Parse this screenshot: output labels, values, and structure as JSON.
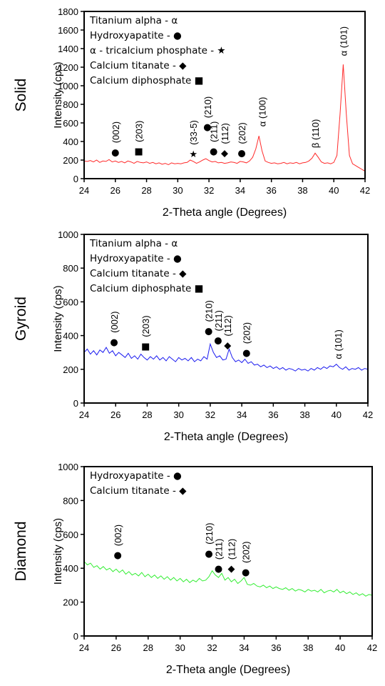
{
  "chart_data": [
    {
      "type": "line",
      "panel_label": "Solid",
      "x_label": "2-Theta angle (Degrees)",
      "y_label": "Intensity (cps)",
      "xlim": [
        24,
        42
      ],
      "xticks": [
        24,
        26,
        28,
        30,
        32,
        34,
        36,
        38,
        40,
        42
      ],
      "ylim": [
        0,
        1800
      ],
      "yticks": [
        0,
        200,
        400,
        600,
        800,
        1000,
        1200,
        1400,
        1600,
        1800
      ],
      "x": [
        24.0,
        24.2,
        24.4,
        24.6,
        24.8,
        25.0,
        25.2,
        25.4,
        25.6,
        25.8,
        26.0,
        26.2,
        26.4,
        26.6,
        26.8,
        27.0,
        27.2,
        27.4,
        27.6,
        27.8,
        28.0,
        28.2,
        28.4,
        28.6,
        28.8,
        29.0,
        29.2,
        29.4,
        29.6,
        29.8,
        30.0,
        30.2,
        30.4,
        30.6,
        30.8,
        31.0,
        31.2,
        31.4,
        31.6,
        31.8,
        32.0,
        32.2,
        32.4,
        32.6,
        32.8,
        33.0,
        33.2,
        33.4,
        33.6,
        33.8,
        34.0,
        34.2,
        34.4,
        34.6,
        34.8,
        35.0,
        35.2,
        35.4,
        35.6,
        35.8,
        36.0,
        36.2,
        36.4,
        36.6,
        36.8,
        37.0,
        37.2,
        37.4,
        37.6,
        37.8,
        38.0,
        38.2,
        38.4,
        38.6,
        38.8,
        39.0,
        39.2,
        39.4,
        39.6,
        39.8,
        40.0,
        40.2,
        40.4,
        40.6,
        40.8,
        41.0,
        41.2,
        41.4,
        41.6,
        41.8,
        42.0
      ],
      "series": [
        {
          "color": "#ff2a2a",
          "values": [
            190,
            185,
            195,
            180,
            200,
            175,
            190,
            185,
            205,
            180,
            190,
            175,
            185,
            170,
            190,
            180,
            165,
            185,
            175,
            170,
            180,
            165,
            175,
            160,
            170,
            155,
            165,
            150,
            170,
            160,
            165,
            160,
            170,
            175,
            200,
            185,
            165,
            180,
            200,
            215,
            195,
            180,
            185,
            170,
            175,
            165,
            170,
            180,
            175,
            165,
            185,
            180,
            170,
            190,
            230,
            320,
            460,
            300,
            190,
            175,
            165,
            170,
            160,
            165,
            175,
            160,
            170,
            165,
            175,
            160,
            170,
            175,
            190,
            220,
            275,
            230,
            180,
            165,
            170,
            160,
            175,
            250,
            700,
            1230,
            700,
            250,
            160,
            140,
            120,
            100,
            80
          ]
        }
      ],
      "legend": [
        "Titanium alpha - α",
        "Hydroxyapatite - ●",
        "α - tricalcium phosphate - ★",
        "Calcium titanate - ◆",
        "Calcium diphosphate ■"
      ],
      "annotations": [
        {
          "label": "(002)",
          "symbol": "●",
          "x": 26,
          "y": 290
        },
        {
          "label": "(203)",
          "symbol": "■",
          "x": 27.5,
          "y": 300
        },
        {
          "label": "(33-5)",
          "symbol": "★",
          "x": 31,
          "y": 270
        },
        {
          "label": "(210)",
          "symbol": "●",
          "x": 31.9,
          "y": 560
        },
        {
          "label": "(211)",
          "symbol": "●",
          "x": 32.3,
          "y": 300
        },
        {
          "label": "(112)",
          "symbol": "◆",
          "x": 33,
          "y": 280
        },
        {
          "label": "(202)",
          "symbol": "●",
          "x": 34.1,
          "y": 280
        },
        {
          "label": "α (100)",
          "x": 35.4,
          "y": 560
        },
        {
          "label": "β (110)",
          "x": 38.8,
          "y": 330
        },
        {
          "label": "α (101)",
          "x": 40.6,
          "y": 1320
        }
      ]
    },
    {
      "type": "line",
      "panel_label": "Gyroid",
      "x_label": "2-Theta angle (Degrees)",
      "y_label": "Intensity (cps)",
      "xlim": [
        24,
        42
      ],
      "xticks": [
        24,
        26,
        28,
        30,
        32,
        34,
        36,
        38,
        40,
        42
      ],
      "ylim": [
        0,
        1000
      ],
      "yticks": [
        0,
        200,
        400,
        600,
        800,
        1000
      ],
      "x": [
        24.0,
        24.2,
        24.4,
        24.6,
        24.8,
        25.0,
        25.2,
        25.4,
        25.6,
        25.8,
        26.0,
        26.2,
        26.4,
        26.6,
        26.8,
        27.0,
        27.2,
        27.4,
        27.6,
        27.8,
        28.0,
        28.2,
        28.4,
        28.6,
        28.8,
        29.0,
        29.2,
        29.4,
        29.6,
        29.8,
        30.0,
        30.2,
        30.4,
        30.6,
        30.8,
        31.0,
        31.2,
        31.4,
        31.6,
        31.8,
        32.0,
        32.2,
        32.4,
        32.6,
        32.8,
        33.0,
        33.2,
        33.4,
        33.6,
        33.8,
        34.0,
        34.2,
        34.4,
        34.6,
        34.8,
        35.0,
        35.2,
        35.4,
        35.6,
        35.8,
        36.0,
        36.2,
        36.4,
        36.6,
        36.8,
        37.0,
        37.2,
        37.4,
        37.6,
        37.8,
        38.0,
        38.2,
        38.4,
        38.6,
        38.8,
        39.0,
        39.2,
        39.4,
        39.6,
        39.8,
        40.0,
        40.2,
        40.4,
        40.6,
        40.8,
        41.0,
        41.2,
        41.4,
        41.6,
        41.8,
        42.0
      ],
      "series": [
        {
          "color": "#1c1cf0",
          "values": [
            300,
            320,
            290,
            310,
            285,
            315,
            300,
            330,
            295,
            310,
            280,
            300,
            285,
            270,
            295,
            265,
            280,
            260,
            290,
            270,
            255,
            275,
            260,
            280,
            255,
            270,
            250,
            275,
            260,
            245,
            270,
            255,
            265,
            250,
            270,
            245,
            260,
            250,
            275,
            260,
            350,
            300,
            270,
            280,
            255,
            260,
            320,
            270,
            245,
            255,
            240,
            260,
            235,
            245,
            225,
            230,
            215,
            225,
            210,
            220,
            205,
            215,
            200,
            210,
            195,
            205,
            200,
            190,
            205,
            195,
            200,
            190,
            205,
            195,
            210,
            200,
            215,
            205,
            220,
            215,
            230,
            210,
            200,
            215,
            195,
            205,
            200,
            210,
            195,
            205,
            200
          ]
        }
      ],
      "legend": [
        "Titanium alpha - α",
        "Hydroxyapatite - ●",
        "Calcium titanate - ◆",
        "Calcium diphosphate ■"
      ],
      "annotations": [
        {
          "label": "(002)",
          "symbol": "●",
          "x": 25.9,
          "y": 365
        },
        {
          "label": "(203)",
          "symbol": "■",
          "x": 27.9,
          "y": 340
        },
        {
          "label": "(210)",
          "symbol": "●",
          "x": 31.9,
          "y": 430
        },
        {
          "label": "(211)",
          "symbol": "●",
          "x": 32.5,
          "y": 375
        },
        {
          "label": "(112)",
          "symbol": "◆",
          "x": 33.1,
          "y": 345
        },
        {
          "label": "(202)",
          "symbol": "●",
          "x": 34.3,
          "y": 300
        },
        {
          "label": "α (101)",
          "x": 40.1,
          "y": 260
        }
      ]
    },
    {
      "type": "line",
      "panel_label": "Diamond",
      "x_label": "2-Theta angle (Degrees)",
      "y_label": "Intensity (cps)",
      "xlim": [
        24,
        42
      ],
      "xticks": [
        24,
        26,
        28,
        30,
        32,
        34,
        36,
        38,
        40,
        42
      ],
      "ylim": [
        0,
        1000
      ],
      "yticks": [
        0,
        200,
        400,
        600,
        800,
        1000
      ],
      "x": [
        24.0,
        24.2,
        24.4,
        24.6,
        24.8,
        25.0,
        25.2,
        25.4,
        25.6,
        25.8,
        26.0,
        26.2,
        26.4,
        26.6,
        26.8,
        27.0,
        27.2,
        27.4,
        27.6,
        27.8,
        28.0,
        28.2,
        28.4,
        28.6,
        28.8,
        29.0,
        29.2,
        29.4,
        29.6,
        29.8,
        30.0,
        30.2,
        30.4,
        30.6,
        30.8,
        31.0,
        31.2,
        31.4,
        31.6,
        31.8,
        32.0,
        32.2,
        32.4,
        32.6,
        32.8,
        33.0,
        33.2,
        33.4,
        33.6,
        33.8,
        34.0,
        34.2,
        34.4,
        34.6,
        34.8,
        35.0,
        35.2,
        35.4,
        35.6,
        35.8,
        36.0,
        36.2,
        36.4,
        36.6,
        36.8,
        37.0,
        37.2,
        37.4,
        37.6,
        37.8,
        38.0,
        38.2,
        38.4,
        38.6,
        38.8,
        39.0,
        39.2,
        39.4,
        39.6,
        39.8,
        40.0,
        40.2,
        40.4,
        40.6,
        40.8,
        41.0,
        41.2,
        41.4,
        41.6,
        41.8,
        42.0
      ],
      "series": [
        {
          "color": "#33ee33",
          "values": [
            440,
            420,
            430,
            405,
            415,
            395,
            410,
            390,
            400,
            380,
            395,
            375,
            390,
            365,
            380,
            360,
            370,
            355,
            375,
            350,
            365,
            345,
            360,
            340,
            355,
            335,
            350,
            330,
            345,
            325,
            340,
            320,
            335,
            315,
            330,
            320,
            340,
            325,
            330,
            350,
            385,
            360,
            345,
            370,
            330,
            345,
            320,
            335,
            310,
            325,
            345,
            305,
            300,
            310,
            295,
            290,
            300,
            285,
            295,
            280,
            290,
            280,
            275,
            285,
            270,
            280,
            265,
            275,
            270,
            260,
            275,
            265,
            270,
            260,
            275,
            255,
            265,
            270,
            260,
            275,
            255,
            265,
            250,
            260,
            245,
            255,
            240,
            250,
            235,
            245,
            240
          ]
        }
      ],
      "legend": [
        "Hydroxyapatite - ●",
        "Calcium titanate - ◆"
      ],
      "annotations": [
        {
          "label": "(002)",
          "symbol": "●",
          "x": 26.1,
          "y": 480
        },
        {
          "label": "(210)",
          "symbol": "●",
          "x": 31.8,
          "y": 490
        },
        {
          "label": "(211)",
          "symbol": "●",
          "x": 32.4,
          "y": 400
        },
        {
          "label": "(112)",
          "symbol": "◆",
          "x": 33.2,
          "y": 400
        },
        {
          "label": "(202)",
          "symbol": "●",
          "x": 34.1,
          "y": 380
        }
      ]
    }
  ]
}
